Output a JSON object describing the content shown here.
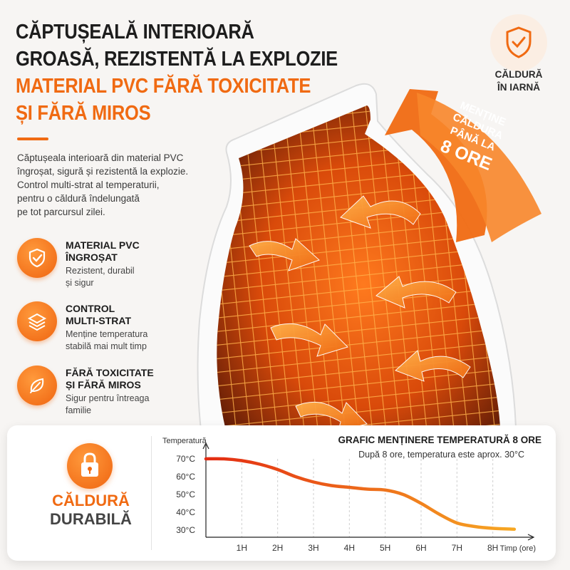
{
  "headline": {
    "line1": "CĂPTUȘEALĂ INTERIOARĂ",
    "line2": "GROASĂ, REZISTENTĂ LA EXPLOZIE",
    "line3": "MATERIAL PVC FĂRĂ TOXICITATE",
    "line4": "ȘI FĂRĂ MIROS"
  },
  "intro": {
    "line1": "Căptușeala interioară din material PVC",
    "line2": "îngroșat, sigură și rezistentă la explozie.",
    "line3": "Control multi-strat al temperaturii,",
    "line4": "pentru o căldură îndelungată",
    "line5": "pe tot parcursul zilei."
  },
  "features": [
    {
      "icon": "shield-check-icon",
      "title1": "MATERIAL PVC",
      "title2": "ÎNGROȘAT",
      "desc1": "Rezistent, durabil",
      "desc2": "și sigur"
    },
    {
      "icon": "layers-icon",
      "title1": "CONTROL",
      "title2": "MULTI-STRAT",
      "desc1": "Menține temperatura",
      "desc2": "stabilă mai mult timp"
    },
    {
      "icon": "leaf-icon",
      "title1": "FĂRĂ TOXICITATE",
      "title2": "ȘI FĂRĂ MIROS",
      "desc1": "Sigur pentru întreaga",
      "desc2": "familie"
    }
  ],
  "badge": {
    "icon": "shield-check-icon",
    "line1": "CĂLDURĂ",
    "line2": "ÎN IARNĂ"
  },
  "arrow_note": {
    "line1": "MENȚINE",
    "line2": "CĂLDURA",
    "line3": "PÂNĂ LA",
    "line4": "8 ORE"
  },
  "durable": {
    "icon": "lock-icon",
    "line1": "CĂLDURĂ",
    "line2": "DURABILĂ"
  },
  "colors": {
    "accent": "#f06a12",
    "curve_start": "#e32b12",
    "curve_end": "#f7a823"
  },
  "chart_data": {
    "type": "line",
    "title": "GRAFIC MENȚINERE TEMPERATURĂ 8 ORE",
    "subtitle": "După 8 ore, temperatura este aprox. 30°C",
    "xlabel": "Timp (ore)",
    "ylabel": "Temperatură",
    "x_tick_labels": [
      "1H",
      "2H",
      "3H",
      "4H",
      "5H",
      "6H",
      "7H",
      "8H"
    ],
    "y_tick_labels": [
      "70°C",
      "60°C",
      "50°C",
      "40°C",
      "30°C"
    ],
    "y_ticks": [
      70,
      60,
      50,
      40,
      30
    ],
    "xlim": [
      0,
      8.8
    ],
    "ylim": [
      30,
      70
    ],
    "grid": "vertical-dashed",
    "series": [
      {
        "x": [
          0,
          0.5,
          1,
          1.5,
          2,
          2.5,
          3,
          3.5,
          4,
          4.5,
          5,
          5.5,
          6,
          6.5,
          7,
          7.5,
          8,
          8.6
        ],
        "y": [
          70,
          70,
          69,
          67,
          64,
          60,
          57,
          55,
          54,
          53,
          52.5,
          50,
          45,
          39,
          34,
          32,
          31,
          30.5
        ]
      }
    ]
  }
}
